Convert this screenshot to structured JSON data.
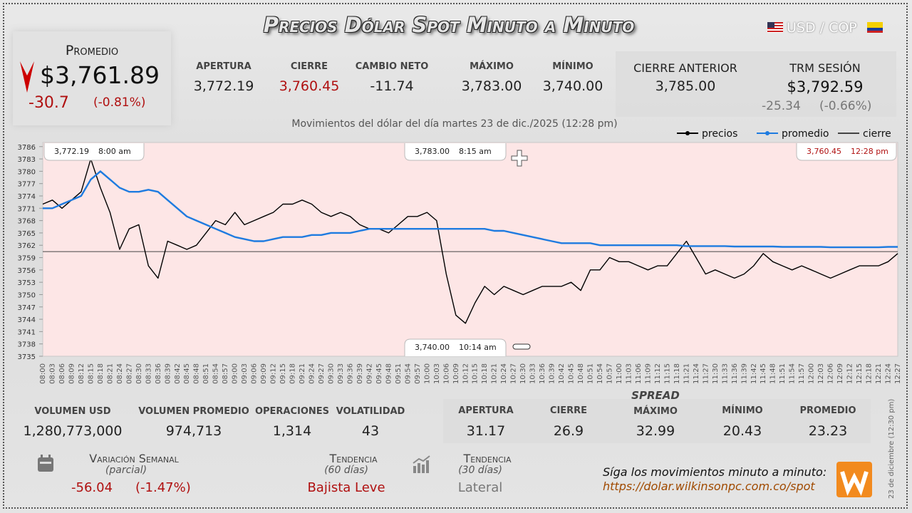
{
  "header": {
    "title": "Precios Dólar Spot Minuto a Minuto",
    "pair": "USD / COP",
    "average": {
      "label": "Promedio",
      "value": "$3,761.89",
      "change": "-30.7",
      "change_pct": "(-0.81%)"
    },
    "stats": [
      {
        "label": "Apertura",
        "value": "3,772.19"
      },
      {
        "label": "Cierre",
        "value": "3,760.45"
      },
      {
        "label": "Cambio neto",
        "value": "-11.74"
      },
      {
        "label": "Máximo",
        "value": "3,783.00"
      },
      {
        "label": "Mínimo",
        "value": "3,740.00"
      }
    ],
    "previous_close": {
      "label": "Cierre anterior",
      "value": "3,785.00"
    },
    "trm": {
      "label": "TRM sesión",
      "value": "$3,792.59",
      "change": "-25.34",
      "change_pct": "(-0.66%)"
    }
  },
  "chart_data": {
    "type": "line",
    "title": "Movimientos del dólar del día martes 23 de dic./2025 (12:28 pm)",
    "categories": [
      "08:00",
      "08:03",
      "08:06",
      "08:09",
      "08:12",
      "08:15",
      "08:18",
      "08:21",
      "08:24",
      "08:27",
      "08:30",
      "08:33",
      "08:36",
      "08:39",
      "08:42",
      "08:45",
      "08:48",
      "08:51",
      "08:54",
      "08:57",
      "09:00",
      "09:03",
      "09:06",
      "09:09",
      "09:12",
      "09:15",
      "09:18",
      "09:21",
      "09:24",
      "09:27",
      "09:30",
      "09:33",
      "09:36",
      "09:39",
      "09:42",
      "09:45",
      "09:48",
      "09:51",
      "09:54",
      "09:57",
      "10:00",
      "10:03",
      "10:06",
      "10:09",
      "10:12",
      "10:15",
      "10:18",
      "10:21",
      "10:24",
      "10:27",
      "10:30",
      "10:33",
      "10:36",
      "10:39",
      "10:42",
      "10:45",
      "10:48",
      "10:51",
      "10:54",
      "10:57",
      "11:00",
      "11:03",
      "11:06",
      "11:09",
      "11:12",
      "11:15",
      "11:18",
      "11:21",
      "11:24",
      "11:27",
      "11:30",
      "11:33",
      "11:36",
      "11:39",
      "11:42",
      "11:45",
      "11:48",
      "11:51",
      "11:54",
      "11:57",
      "12:00",
      "12:03",
      "12:06",
      "12:09",
      "12:12",
      "12:15",
      "12:18",
      "12:21",
      "12:24",
      "12:27"
    ],
    "series": [
      {
        "name": "precios",
        "color": "#000000",
        "values": [
          3772,
          3773,
          3771,
          3773,
          3775,
          3783,
          3776,
          3770,
          3761,
          3766,
          3767,
          3757,
          3754,
          3763,
          3762,
          3761,
          3762,
          3765,
          3768,
          3767,
          3770,
          3767,
          3768,
          3769,
          3770,
          3772,
          3772,
          3773,
          3772,
          3770,
          3769,
          3770,
          3769,
          3767,
          3766,
          3766,
          3765,
          3767,
          3769,
          3769,
          3770,
          3768,
          3755,
          3745,
          3743,
          3748,
          3752,
          3750,
          3752,
          3751,
          3750,
          3751,
          3752,
          3752,
          3752,
          3753,
          3751,
          3756,
          3756,
          3759,
          3758,
          3758,
          3757,
          3756,
          3757,
          3757,
          3760,
          3763,
          3759,
          3755,
          3756,
          3755,
          3754,
          3755,
          3757,
          3760,
          3758,
          3757,
          3756,
          3757,
          3756,
          3755,
          3754,
          3755,
          3756,
          3757,
          3757,
          3757,
          3758,
          3760
        ]
      },
      {
        "name": "promedio",
        "color": "#1e7be0",
        "values": [
          3771,
          3771,
          3772,
          3773,
          3774,
          3778,
          3780,
          3778,
          3776,
          3775,
          3775,
          3775.5,
          3775,
          3773,
          3771,
          3769,
          3768,
          3767,
          3766,
          3765,
          3764,
          3763.5,
          3763,
          3763,
          3763.5,
          3764,
          3764,
          3764,
          3764.5,
          3764.5,
          3765,
          3765,
          3765,
          3765.5,
          3766,
          3766,
          3766,
          3766,
          3766,
          3766,
          3766,
          3766,
          3766,
          3766,
          3766,
          3766,
          3766,
          3765.5,
          3765.5,
          3765,
          3764.5,
          3764,
          3763.5,
          3763,
          3762.5,
          3762.5,
          3762.5,
          3762.5,
          3762,
          3762,
          3762,
          3762,
          3762,
          3762,
          3762,
          3762,
          3762,
          3761.8,
          3761.8,
          3761.8,
          3761.8,
          3761.8,
          3761.7,
          3761.7,
          3761.7,
          3761.7,
          3761.7,
          3761.6,
          3761.6,
          3761.6,
          3761.6,
          3761.6,
          3761.5,
          3761.5,
          3761.5,
          3761.5,
          3761.5,
          3761.5,
          3761.6,
          3761.6
        ]
      }
    ],
    "reference_line": {
      "name": "cierre",
      "value": 3760.45,
      "color": "#444444"
    },
    "annotations": [
      {
        "price": "3,772.19",
        "time": "8:00 am"
      },
      {
        "price": "3,783.00",
        "time": "8:15 am"
      },
      {
        "price": "3,760.45",
        "time": "12:28 pm"
      },
      {
        "price": "3,740.00",
        "time": "10:14 am"
      }
    ],
    "ylim": [
      3735,
      3787
    ],
    "yticks": [
      3735,
      3738,
      3741,
      3744,
      3747,
      3750,
      3753,
      3756,
      3759,
      3762,
      3765,
      3768,
      3771,
      3774,
      3777,
      3780,
      3783,
      3786
    ],
    "grid": false,
    "legend": "top-right"
  },
  "volume": [
    {
      "label": "Volumen USD",
      "value": "1,280,773,000"
    },
    {
      "label": "Volumen promedio",
      "value": "974,713"
    },
    {
      "label": "Operaciones",
      "value": "1,314"
    },
    {
      "label": "Volatilidad",
      "value": "43"
    }
  ],
  "spread": {
    "title": "Spread",
    "items": [
      {
        "label": "Apertura",
        "value": "31.17"
      },
      {
        "label": "Cierre",
        "value": "26.9"
      },
      {
        "label": "Máximo",
        "value": "32.99"
      },
      {
        "label": "Mínimo",
        "value": "20.43"
      },
      {
        "label": "Promedio",
        "value": "23.23"
      }
    ]
  },
  "weekly": {
    "label": "Variación semanal",
    "note": "(parcial)",
    "change": "-56.04",
    "change_pct": "(-1.47%)"
  },
  "trends": [
    {
      "label": "Tendencia",
      "note": "(60 días)",
      "value": "Bajista Leve"
    },
    {
      "label": "Tendencia",
      "note": "(30 días)",
      "value": "Lateral"
    }
  ],
  "footer": {
    "text": "Síga los movimientos minuto a minuto:",
    "url": "https://dolar.wilkinsonpc.com.co/spot",
    "side": "23 de diciembre (12:30 pm)"
  }
}
